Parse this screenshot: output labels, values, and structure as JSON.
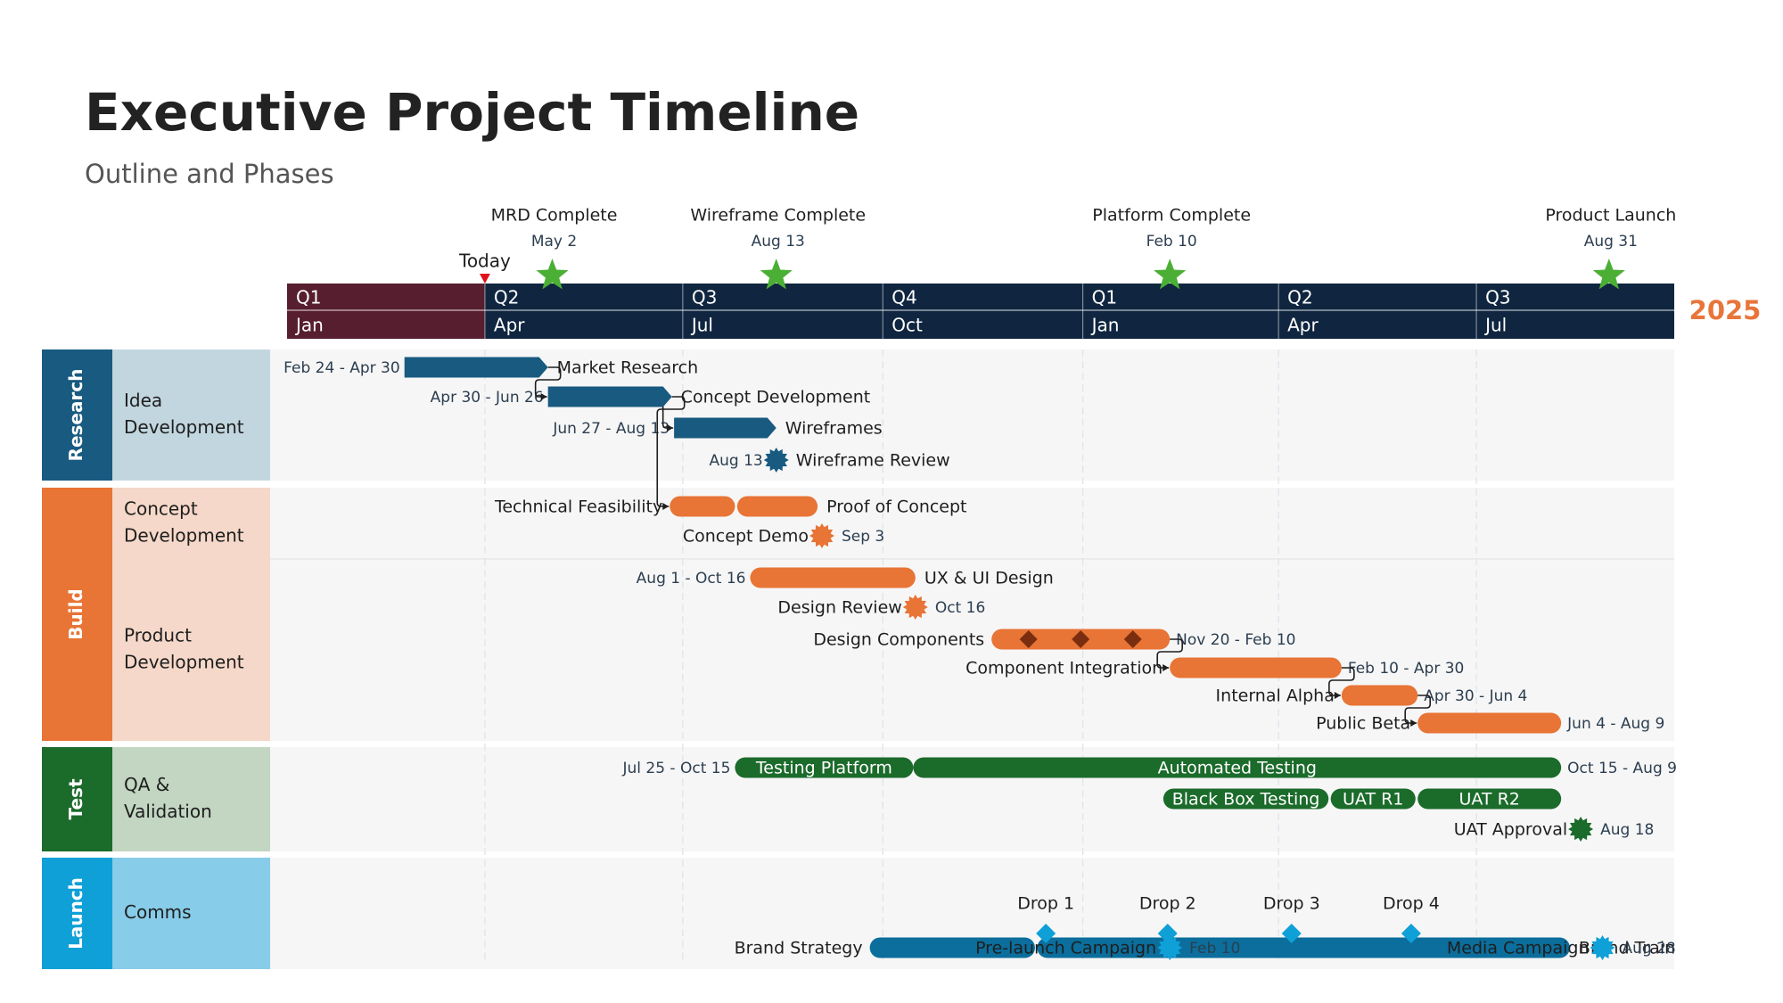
{
  "title": "Executive Project Timeline",
  "subtitle": "Outline and Phases",
  "colors": {
    "research": "#185a80",
    "build": "#e87435",
    "test": "#1b6b2b",
    "launch": "#0fa0d8",
    "comms_bar": "#0b6e9c",
    "header_dark": "#102640",
    "header_past": "#561e2e",
    "milestone_star": "#4caf35",
    "today_marker": "#e0101a",
    "year": "#e8753a"
  },
  "chart_data": {
    "type": "gantt",
    "year_label": "2025",
    "timescale": {
      "start": "2024-01-01",
      "end": "2025-09-30",
      "quarters": [
        {
          "label": "Q1",
          "start": "2024-01-01"
        },
        {
          "label": "Q2",
          "start": "2024-04-01"
        },
        {
          "label": "Q3",
          "start": "2024-07-01"
        },
        {
          "label": "Q4",
          "start": "2024-10-01"
        },
        {
          "label": "Q1",
          "start": "2025-01-01"
        },
        {
          "label": "Q2",
          "start": "2025-04-01"
        },
        {
          "label": "Q3",
          "start": "2025-07-01"
        }
      ],
      "months": [
        {
          "label": "Jan",
          "start": "2024-01-01"
        },
        {
          "label": "Apr",
          "start": "2024-04-01"
        },
        {
          "label": "Jul",
          "start": "2024-07-01"
        },
        {
          "label": "Oct",
          "start": "2024-10-01"
        },
        {
          "label": "Jan",
          "start": "2025-01-01"
        },
        {
          "label": "Apr",
          "start": "2025-04-01"
        },
        {
          "label": "Jul",
          "start": "2025-07-01"
        }
      ]
    },
    "today": {
      "label": "Today",
      "date": "2024-04-01"
    },
    "key_milestones": [
      {
        "name": "MRD Complete",
        "date_label": "May 2",
        "date": "2024-05-02"
      },
      {
        "name": "Wireframe Complete",
        "date_label": "Aug 13",
        "date": "2024-08-13"
      },
      {
        "name": "Platform Complete",
        "date_label": "Feb 10",
        "date": "2025-02-10"
      },
      {
        "name": "Product Launch",
        "date_label": "Aug 31",
        "date": "2025-08-31"
      }
    ],
    "phases": [
      {
        "name": "Research",
        "color": "#185a80",
        "bg": "#c2d6df",
        "swimlanes": [
          {
            "name": "Idea Development",
            "rows": 4
          }
        ]
      },
      {
        "name": "Build",
        "color": "#e87435",
        "bg": "#f5d8c9",
        "swimlanes": [
          {
            "name": "Concept Development",
            "rows": 2
          },
          {
            "name": "Product Development",
            "rows": 6
          }
        ]
      },
      {
        "name": "Test",
        "color": "#1b6b2b",
        "bg": "#c2d6c2",
        "swimlanes": [
          {
            "name": "QA & Validation",
            "rows": 3
          }
        ]
      },
      {
        "name": "Launch",
        "color": "#0fa0d8",
        "bg": "#87cce8",
        "swimlanes": [
          {
            "name": "Comms",
            "rows": 3
          }
        ]
      }
    ],
    "tasks": [
      {
        "name": "Market Research",
        "start": "2024-02-24",
        "end": "2024-04-30",
        "range_label": "Feb 24 - Apr 30",
        "label_side": "right",
        "range_side": "left",
        "shape": "arrow",
        "color": "#185a80",
        "phase": "Research",
        "row": 0
      },
      {
        "name": "Concept Development",
        "start": "2024-04-30",
        "end": "2024-06-26",
        "range_label": "Apr 30 - Jun 26",
        "label_side": "right",
        "range_side": "left",
        "shape": "arrow",
        "color": "#185a80",
        "phase": "Research",
        "row": 1
      },
      {
        "name": "Wireframes",
        "start": "2024-06-27",
        "end": "2024-08-13",
        "range_label": "Jun 27 - Aug 13",
        "label_side": "right",
        "range_side": "left",
        "shape": "arrow",
        "color": "#185a80",
        "phase": "Research",
        "row": 2
      },
      {
        "name": "Technical Feasibility",
        "start": "2024-06-25",
        "end": "2024-07-25",
        "range_label": "",
        "label_side": "left",
        "range_side": "",
        "shape": "pill",
        "color": "#e87435",
        "phase": "Build",
        "row": 0
      },
      {
        "name": "Proof of Concept",
        "start": "2024-07-26",
        "end": "2024-09-01",
        "range_label": "",
        "label_side": "right",
        "range_side": "",
        "shape": "pill",
        "color": "#e87435",
        "phase": "Build",
        "row": 0
      },
      {
        "name": "UX & UI Design",
        "start": "2024-08-01",
        "end": "2024-10-16",
        "range_label": "Aug 1 - Oct 16",
        "label_side": "right",
        "range_side": "left",
        "shape": "pill",
        "color": "#e87435",
        "phase": "Build",
        "row": 2
      },
      {
        "name": "Design Components",
        "start": "2024-11-20",
        "end": "2025-02-10",
        "range_label": "Nov 20 - Feb 10",
        "label_side": "left",
        "range_side": "right",
        "shape": "pill",
        "color": "#e87435",
        "phase": "Build",
        "row": 4,
        "sub_markers": [
          "2024-12-07",
          "2024-12-31",
          "2025-01-24"
        ]
      },
      {
        "name": "Component Integration",
        "start": "2025-02-10",
        "end": "2025-04-30",
        "range_label": "Feb 10 - Apr 30",
        "label_side": "left",
        "range_side": "right",
        "shape": "pill",
        "color": "#e87435",
        "phase": "Build",
        "row": 5
      },
      {
        "name": "Internal Alpha",
        "start": "2025-04-30",
        "end": "2025-06-04",
        "range_label": "Apr 30 - Jun 4",
        "label_side": "left",
        "range_side": "right",
        "shape": "pill",
        "color": "#e87435",
        "phase": "Build",
        "row": 6
      },
      {
        "name": "Public Beta",
        "start": "2025-06-04",
        "end": "2025-08-09",
        "range_label": "Jun 4 - Aug 9",
        "label_side": "left",
        "range_side": "right",
        "shape": "pill",
        "color": "#e87435",
        "phase": "Build",
        "row": 7
      },
      {
        "name": "Testing Platform",
        "start": "2024-07-25",
        "end": "2024-10-15",
        "range_label": "Jul 25 - Oct 15",
        "label_side": "inside",
        "range_side": "left",
        "shape": "pill",
        "color": "#1b6b2b",
        "phase": "Test",
        "row": 0
      },
      {
        "name": "Automated Testing",
        "start": "2024-10-15",
        "end": "2025-08-09",
        "range_label": "Oct 15 - Aug 9",
        "label_side": "inside",
        "range_side": "right",
        "shape": "pill",
        "color": "#1b6b2b",
        "phase": "Test",
        "row": 0
      },
      {
        "name": "Black Box Testing",
        "start": "2025-02-07",
        "end": "2025-04-24",
        "range_label": "",
        "label_side": "inside",
        "range_side": "",
        "shape": "pill",
        "color": "#1b6b2b",
        "phase": "Test",
        "row": 1
      },
      {
        "name": "UAT R1",
        "start": "2025-04-25",
        "end": "2025-06-03",
        "range_label": "",
        "label_side": "inside",
        "range_side": "",
        "shape": "pill",
        "color": "#1b6b2b",
        "phase": "Test",
        "row": 1
      },
      {
        "name": "UAT R2",
        "start": "2025-06-04",
        "end": "2025-08-09",
        "range_label": "",
        "label_side": "inside",
        "range_side": "",
        "shape": "pill",
        "color": "#1b6b2b",
        "phase": "Test",
        "row": 1
      },
      {
        "name": "Brand Strategy",
        "start": "2024-09-25",
        "end": "2024-12-10",
        "range_label": "",
        "label_side": "left",
        "range_side": "",
        "shape": "pill",
        "color": "#0b6e9c",
        "phase": "Launch",
        "row": 1
      },
      {
        "name": "Brand Train",
        "start": "2024-12-11",
        "end": "2025-08-13",
        "range_label": "",
        "label_side": "right",
        "range_side": "",
        "shape": "pill",
        "color": "#0b6e9c",
        "phase": "Launch",
        "row": 1
      }
    ],
    "milestones": [
      {
        "name": "Wireframe Review",
        "date": "2024-08-13",
        "date_label": "Aug 13",
        "label_side": "right",
        "date_side": "left",
        "shape": "burst",
        "color": "#185a80",
        "phase": "Research",
        "row": 3
      },
      {
        "name": "Concept Demo",
        "date": "2024-09-03",
        "date_label": "Sep 3",
        "label_side": "left",
        "date_side": "right",
        "shape": "burst",
        "color": "#e87435",
        "phase": "Build",
        "row": 1
      },
      {
        "name": "Design Review",
        "date": "2024-10-16",
        "date_label": "Oct 16",
        "label_side": "left",
        "date_side": "right",
        "shape": "burst",
        "color": "#e87435",
        "phase": "Build",
        "row": 3
      },
      {
        "name": "UAT Approval",
        "date": "2025-08-18",
        "date_label": "Aug 18",
        "label_side": "left",
        "date_side": "right",
        "shape": "burst",
        "color": "#1b6b2b",
        "phase": "Test",
        "row": 2
      },
      {
        "name": "Drop 1",
        "date": "2024-12-15",
        "date_label": "",
        "label_side": "above",
        "date_side": "",
        "shape": "diamond",
        "color": "#0fa0d8",
        "phase": "Launch",
        "row": 1
      },
      {
        "name": "Drop 2",
        "date": "2025-02-09",
        "date_label": "",
        "label_side": "above",
        "date_side": "",
        "shape": "diamond",
        "color": "#0fa0d8",
        "phase": "Launch",
        "row": 1
      },
      {
        "name": "Drop 3",
        "date": "2025-04-07",
        "date_label": "",
        "label_side": "above",
        "date_side": "",
        "shape": "diamond",
        "color": "#0fa0d8",
        "phase": "Launch",
        "row": 1
      },
      {
        "name": "Drop 4",
        "date": "2025-06-01",
        "date_label": "",
        "label_side": "above",
        "date_side": "",
        "shape": "diamond",
        "color": "#0fa0d8",
        "phase": "Launch",
        "row": 1
      },
      {
        "name": "Pre-launch Campaign",
        "date": "2025-02-10",
        "date_label": "Feb 10",
        "label_side": "left",
        "date_side": "right",
        "shape": "burst",
        "color": "#0fa0d8",
        "phase": "Launch",
        "row": 2
      },
      {
        "name": "Media Campaign",
        "date": "2025-08-28",
        "date_label": "Aug 28",
        "label_side": "left",
        "date_side": "right",
        "shape": "burst",
        "color": "#0fa0d8",
        "phase": "Launch",
        "row": 2
      }
    ],
    "dependencies": [
      {
        "from": "Market Research",
        "to": "Concept Development"
      },
      {
        "from": "Concept Development",
        "to": "Wireframes"
      },
      {
        "from": "Concept Development",
        "to": "Technical Feasibility"
      },
      {
        "from": "Design Components",
        "to": "Component Integration"
      },
      {
        "from": "Component Integration",
        "to": "Internal Alpha"
      },
      {
        "from": "Internal Alpha",
        "to": "Public Beta"
      }
    ]
  }
}
